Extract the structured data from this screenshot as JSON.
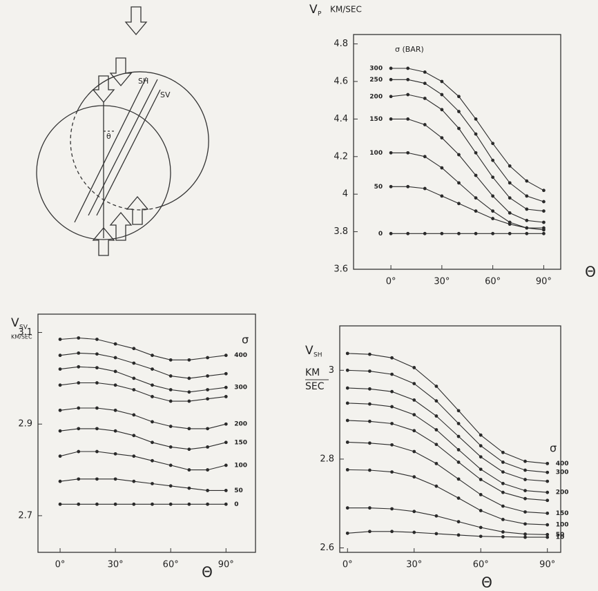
{
  "diagram": {
    "labels": [
      "SH",
      "SV",
      "θ"
    ]
  },
  "chart_data": [
    {
      "type": "line",
      "y_label": "V",
      "y_label_sub": "P",
      "y_unit": "KM/SEC",
      "x_label": "Θ",
      "legend_title": "σ (BAR)",
      "series_label_side": "left",
      "color": "#2a2a2a",
      "x": [
        0,
        10,
        20,
        30,
        40,
        50,
        60,
        70,
        80,
        90
      ],
      "xlim": [
        -22,
        100
      ],
      "xticks": [
        {
          "value": 0,
          "label": "0°"
        },
        {
          "value": 30,
          "label": "30°"
        },
        {
          "value": 60,
          "label": "60°"
        },
        {
          "value": 90,
          "label": "90°"
        }
      ],
      "ylim": [
        3.6,
        4.85
      ],
      "yticks": [
        3.6,
        3.8,
        4.0,
        4.2,
        4.4,
        4.6,
        4.8
      ],
      "series": [
        {
          "name": "300",
          "values": [
            4.67,
            4.67,
            4.65,
            4.6,
            4.52,
            4.4,
            4.27,
            4.15,
            4.07,
            4.02
          ]
        },
        {
          "name": "250",
          "values": [
            4.61,
            4.61,
            4.59,
            4.53,
            4.44,
            4.32,
            4.18,
            4.06,
            3.99,
            3.96
          ]
        },
        {
          "name": "200",
          "values": [
            4.52,
            4.53,
            4.51,
            4.45,
            4.35,
            4.22,
            4.09,
            3.98,
            3.92,
            3.91
          ]
        },
        {
          "name": "150",
          "values": [
            4.4,
            4.4,
            4.37,
            4.3,
            4.21,
            4.1,
            3.99,
            3.9,
            3.86,
            3.85
          ]
        },
        {
          "name": "100",
          "values": [
            4.22,
            4.22,
            4.2,
            4.14,
            4.06,
            3.98,
            3.91,
            3.85,
            3.82,
            3.81
          ]
        },
        {
          "name": "50",
          "values": [
            4.04,
            4.04,
            4.03,
            3.99,
            3.95,
            3.91,
            3.87,
            3.84,
            3.82,
            3.82
          ]
        },
        {
          "name": "0",
          "values": [
            3.79,
            3.79,
            3.79,
            3.79,
            3.79,
            3.79,
            3.79,
            3.79,
            3.79,
            3.79
          ]
        }
      ]
    },
    {
      "type": "line",
      "y_label": "V",
      "y_label_sub": "SV",
      "y_unit": "KM/SEC",
      "x_label": "Θ",
      "legend_title": "σ",
      "series_label_side": "right",
      "color": "#2a2a2a",
      "x": [
        0,
        10,
        20,
        30,
        40,
        50,
        60,
        70,
        80,
        90
      ],
      "xlim": [
        -12,
        106
      ],
      "xticks": [
        {
          "value": 0,
          "label": "0°"
        },
        {
          "value": 30,
          "label": "30°"
        },
        {
          "value": 60,
          "label": "60°"
        },
        {
          "value": 90,
          "label": "90°"
        }
      ],
      "ylim": [
        2.62,
        3.14
      ],
      "yticks": [
        2.7,
        2.9,
        3.1
      ],
      "series": [
        {
          "name": "400",
          "values": [
            3.085,
            3.088,
            3.085,
            3.075,
            3.065,
            3.05,
            3.04,
            3.04,
            3.045,
            3.05
          ]
        },
        {
          "name": null,
          "values": [
            3.05,
            3.055,
            3.053,
            3.045,
            3.033,
            3.02,
            3.005,
            3.0,
            3.005,
            3.01
          ]
        },
        {
          "name": "300",
          "values": [
            3.02,
            3.025,
            3.023,
            3.015,
            3.0,
            2.985,
            2.975,
            2.97,
            2.975,
            2.98
          ]
        },
        {
          "name": null,
          "values": [
            2.985,
            2.99,
            2.99,
            2.985,
            2.975,
            2.96,
            2.95,
            2.95,
            2.955,
            2.96
          ]
        },
        {
          "name": "200",
          "values": [
            2.93,
            2.935,
            2.935,
            2.93,
            2.92,
            2.905,
            2.895,
            2.89,
            2.89,
            2.9
          ]
        },
        {
          "name": "150",
          "values": [
            2.885,
            2.89,
            2.89,
            2.885,
            2.875,
            2.86,
            2.85,
            2.845,
            2.85,
            2.86
          ]
        },
        {
          "name": "100",
          "values": [
            2.83,
            2.84,
            2.84,
            2.835,
            2.83,
            2.82,
            2.81,
            2.8,
            2.8,
            2.81
          ]
        },
        {
          "name": "50",
          "values": [
            2.775,
            2.78,
            2.78,
            2.78,
            2.775,
            2.77,
            2.765,
            2.76,
            2.755,
            2.755
          ]
        },
        {
          "name": "0",
          "values": [
            2.725,
            2.725,
            2.725,
            2.725,
            2.725,
            2.725,
            2.725,
            2.725,
            2.725,
            2.725
          ]
        }
      ]
    },
    {
      "type": "line",
      "y_label": "V",
      "y_label_sub": "SH",
      "y_unit": [
        "KM",
        "SEC"
      ],
      "x_label": "Θ",
      "legend_title": "σ",
      "series_label_side": "right",
      "color": "#2a2a2a",
      "x": [
        0,
        10,
        20,
        30,
        40,
        50,
        60,
        70,
        80,
        90
      ],
      "xlim": [
        -3.5,
        96
      ],
      "xticks": [
        {
          "value": 0,
          "label": "0°"
        },
        {
          "value": 30,
          "label": "30°"
        },
        {
          "value": 60,
          "label": "60°"
        },
        {
          "value": 90,
          "label": "90°"
        }
      ],
      "ylim": [
        2.59,
        3.1
      ],
      "yticks": [
        2.6,
        2.8,
        3.0
      ],
      "series": [
        {
          "name": "400",
          "values": [
            3.038,
            3.036,
            3.028,
            3.006,
            2.964,
            2.909,
            2.854,
            2.815,
            2.795,
            2.79
          ]
        },
        {
          "name": "300",
          "values": [
            3.0,
            2.998,
            2.991,
            2.97,
            2.931,
            2.88,
            2.83,
            2.793,
            2.775,
            2.77
          ]
        },
        {
          "name": null,
          "values": [
            2.96,
            2.958,
            2.952,
            2.933,
            2.897,
            2.851,
            2.805,
            2.771,
            2.754,
            2.75
          ]
        },
        {
          "name": "200",
          "values": [
            2.926,
            2.924,
            2.918,
            2.9,
            2.866,
            2.821,
            2.777,
            2.745,
            2.729,
            2.725
          ]
        },
        {
          "name": null,
          "values": [
            2.887,
            2.885,
            2.88,
            2.864,
            2.833,
            2.793,
            2.754,
            2.725,
            2.711,
            2.707
          ]
        },
        {
          "name": "150",
          "values": [
            2.838,
            2.836,
            2.832,
            2.817,
            2.79,
            2.755,
            2.72,
            2.694,
            2.681,
            2.678
          ]
        },
        {
          "name": "100",
          "values": [
            2.776,
            2.775,
            2.771,
            2.76,
            2.739,
            2.712,
            2.684,
            2.664,
            2.654,
            2.652
          ]
        },
        {
          "name": "50",
          "values": [
            2.69,
            2.69,
            2.688,
            2.682,
            2.672,
            2.659,
            2.646,
            2.636,
            2.631,
            2.63
          ]
        },
        {
          "name": "10",
          "values": [
            2.633,
            2.637,
            2.637,
            2.635,
            2.632,
            2.629,
            2.626,
            2.625,
            2.624,
            2.624
          ]
        }
      ]
    }
  ]
}
